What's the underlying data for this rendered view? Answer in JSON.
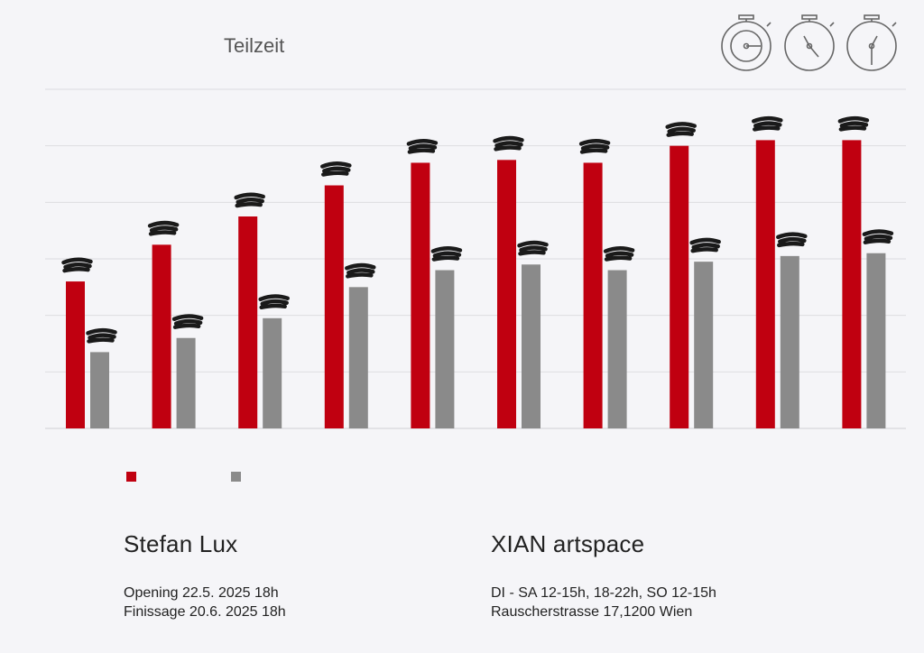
{
  "chart_data": {
    "type": "bar",
    "title": "Teilzeit",
    "categories": [
      "",
      "",
      "",
      "",
      "",
      "",
      "",
      "",
      "",
      ""
    ],
    "series": [
      {
        "color": "#c00010",
        "values": [
          26,
          32.5,
          37.5,
          43,
          47,
          47.5,
          47,
          50,
          51,
          51
        ]
      },
      {
        "color": "#8a8a8a",
        "values": [
          13.5,
          16,
          19.5,
          25,
          28,
          29,
          28,
          29.5,
          30.5,
          31
        ]
      }
    ],
    "ylim": [
      0,
      60
    ],
    "grid": true,
    "legend_position": "bottom-left",
    "data_labels_redacted": true
  },
  "header_icons": [
    "stopwatch-icon",
    "stopwatch-icon",
    "stopwatch-icon"
  ],
  "artist": {
    "name": "Stefan Lux",
    "opening": "Opening 22.5. 2025 18h",
    "finissage": "Finissage 20.6. 2025 18h"
  },
  "venue": {
    "name": "XIAN artspace",
    "hours": "DI - SA 12-15h, 18-22h, SO 12-15h",
    "address": "Rauscherstrasse 17,1200 Wien"
  }
}
